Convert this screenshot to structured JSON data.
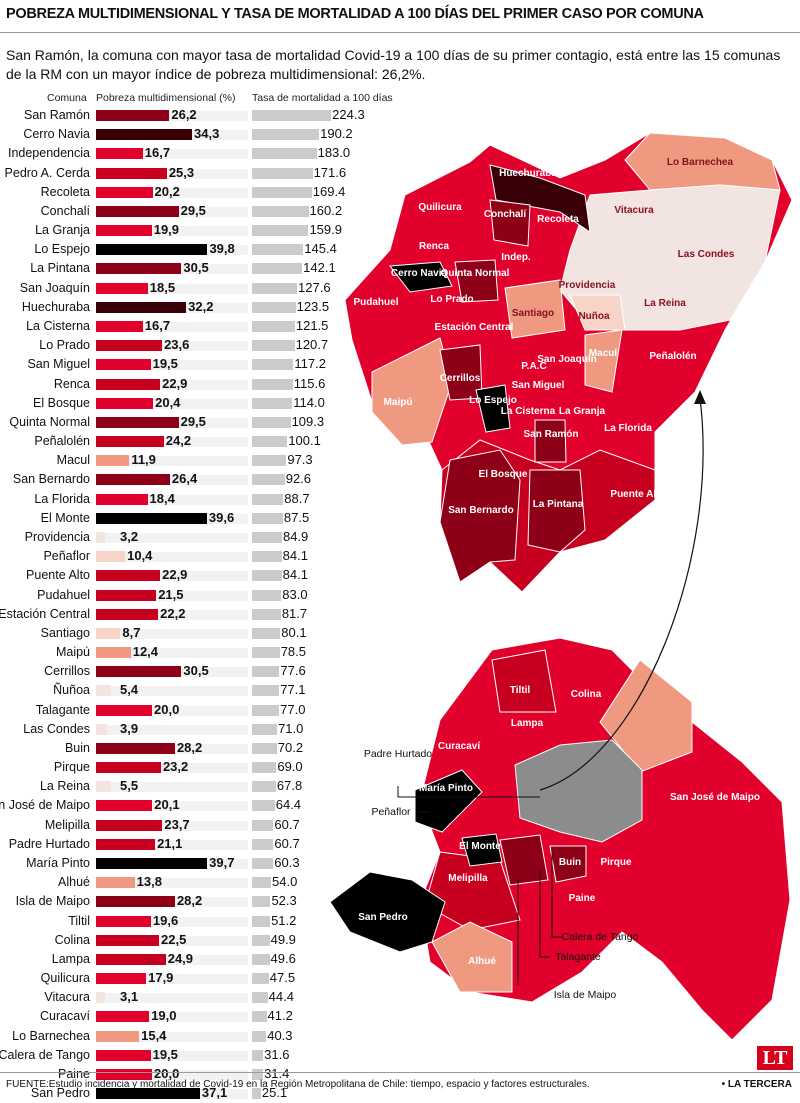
{
  "title": "Pobreza multidimensional y tasa de mortalidad a 100 días del primer caso por comuna",
  "subtitle": "San Ramón, la comuna con mayor tasa de mortalidad Covid-19 a 100 días de su primer contagio, está entre las 15 comunas de la RM con un mayor índice de pobreza multidimensional: 26,2%.",
  "colors": {
    "black": "#000000",
    "maroon": "#3a0008",
    "dark_red": "#8e0018",
    "red": "#c8001f",
    "bright_red": "#e2002c",
    "salmon": "#ef9a80",
    "light_pink": "#f8d3c8",
    "pale": "#f2e4e0",
    "mortality_bar": "#cbcbcb",
    "urban_gray": "#8c8c8c"
  },
  "chart_data": {
    "type": "bar",
    "headers": {
      "comuna": "Comuna",
      "pobreza": "Pobreza multidimensional (%)",
      "mortalidad": "Tasa de mortalidad a 100 días"
    },
    "rows": [
      {
        "comuna": "San Ramón",
        "pobreza": "26,2",
        "mortalidad": "224.3"
      },
      {
        "comuna": "Cerro Navia",
        "pobreza": "34,3",
        "mortalidad": "190.2"
      },
      {
        "comuna": "Independencia",
        "pobreza": "16,7",
        "mortalidad": "183.0"
      },
      {
        "comuna": "Pedro A. Cerda",
        "pobreza": "25,3",
        "mortalidad": "171.6"
      },
      {
        "comuna": "Recoleta",
        "pobreza": "20,2",
        "mortalidad": "169.4"
      },
      {
        "comuna": "Conchalí",
        "pobreza": "29,5",
        "mortalidad": "160.2"
      },
      {
        "comuna": "La Granja",
        "pobreza": "19,9",
        "mortalidad": "159.9"
      },
      {
        "comuna": "Lo Espejo",
        "pobreza": "39,8",
        "mortalidad": "145.4"
      },
      {
        "comuna": "La Pintana",
        "pobreza": "30,5",
        "mortalidad": "142.1"
      },
      {
        "comuna": "San Joaquín",
        "pobreza": "18,5",
        "mortalidad": "127.6"
      },
      {
        "comuna": "Huechuraba",
        "pobreza": "32,2",
        "mortalidad": "123.5"
      },
      {
        "comuna": "La Cisterna",
        "pobreza": "16,7",
        "mortalidad": "121.5"
      },
      {
        "comuna": "Lo Prado",
        "pobreza": "23,6",
        "mortalidad": "120.7"
      },
      {
        "comuna": "San Miguel",
        "pobreza": "19,5",
        "mortalidad": "117.2"
      },
      {
        "comuna": "Renca",
        "pobreza": "22,9",
        "mortalidad": "115.6"
      },
      {
        "comuna": "El Bosque",
        "pobreza": "20,4",
        "mortalidad": "114.0"
      },
      {
        "comuna": "Quinta Normal",
        "pobreza": "29,5",
        "mortalidad": "109.3"
      },
      {
        "comuna": "Peñalolén",
        "pobreza": "24,2",
        "mortalidad": "100.1"
      },
      {
        "comuna": "Macul",
        "pobreza": "11,9",
        "mortalidad": "97.3"
      },
      {
        "comuna": "San Bernardo",
        "pobreza": "26,4",
        "mortalidad": "92.6"
      },
      {
        "comuna": "La Florida",
        "pobreza": "18,4",
        "mortalidad": "88.7"
      },
      {
        "comuna": "El Monte",
        "pobreza": "39,6",
        "mortalidad": "87.5"
      },
      {
        "comuna": "Providencia",
        "pobreza": "3,2",
        "mortalidad": "84.9"
      },
      {
        "comuna": "Peñaflor",
        "pobreza": "10,4",
        "mortalidad": "84.1"
      },
      {
        "comuna": "Puente Alto",
        "pobreza": "22,9",
        "mortalidad": "84.1"
      },
      {
        "comuna": "Pudahuel",
        "pobreza": "21,5",
        "mortalidad": "83.0"
      },
      {
        "comuna": "Estación Central",
        "pobreza": "22,2",
        "mortalidad": "81.7"
      },
      {
        "comuna": "Santiago",
        "pobreza": "8,7",
        "mortalidad": "80.1"
      },
      {
        "comuna": "Maipú",
        "pobreza": "12,4",
        "mortalidad": "78.5"
      },
      {
        "comuna": "Cerrillos",
        "pobreza": "30,5",
        "mortalidad": "77.6"
      },
      {
        "comuna": "Ñuñoa",
        "pobreza": "5,4",
        "mortalidad": "77.1"
      },
      {
        "comuna": "Talagante",
        "pobreza": "20,0",
        "mortalidad": "77.0"
      },
      {
        "comuna": "Las Condes",
        "pobreza": "3,9",
        "mortalidad": "71.0"
      },
      {
        "comuna": "Buin",
        "pobreza": "28,2",
        "mortalidad": "70.2"
      },
      {
        "comuna": "Pirque",
        "pobreza": "23,2",
        "mortalidad": "69.0"
      },
      {
        "comuna": "La Reina",
        "pobreza": "5,5",
        "mortalidad": "67.8"
      },
      {
        "comuna": "San José de Maipo",
        "pobreza": "20,1",
        "mortalidad": "64.4"
      },
      {
        "comuna": "Melipilla",
        "pobreza": "23,7",
        "mortalidad": "60.7"
      },
      {
        "comuna": "Padre Hurtado",
        "pobreza": "21,1",
        "mortalidad": "60.7"
      },
      {
        "comuna": "María Pinto",
        "pobreza": "39,7",
        "mortalidad": "60.3"
      },
      {
        "comuna": "Alhué",
        "pobreza": "13,8",
        "mortalidad": "54.0"
      },
      {
        "comuna": "Isla de Maipo",
        "pobreza": "28,2",
        "mortalidad": "52.3"
      },
      {
        "comuna": "Tiltil",
        "pobreza": "19,6",
        "mortalidad": "51.2"
      },
      {
        "comuna": "Colina",
        "pobreza": "22,5",
        "mortalidad": "49.9"
      },
      {
        "comuna": "Lampa",
        "pobreza": "24,9",
        "mortalidad": "49.6"
      },
      {
        "comuna": "Quilicura",
        "pobreza": "17,9",
        "mortalidad": "47.5"
      },
      {
        "comuna": "Vitacura",
        "pobreza": "3,1",
        "mortalidad": "44.4"
      },
      {
        "comuna": "Curacaví",
        "pobreza": "19,0",
        "mortalidad": "41.2"
      },
      {
        "comuna": "Lo Barnechea",
        "pobreza": "15,4",
        "mortalidad": "40.3"
      },
      {
        "comuna": "Calera de Tango",
        "pobreza": "19,5",
        "mortalidad": "31.6"
      },
      {
        "comuna": "Paine",
        "pobreza": "20,0",
        "mortalidad": "31.4"
      },
      {
        "comuna": "San Pedro",
        "pobreza": "37,1",
        "mortalidad": "25.1"
      }
    ]
  },
  "map": {
    "urban_labels": [
      "Huechuraba",
      "Lo Barnechea",
      "Quilicura",
      "Conchalí",
      "Vitacura",
      "Recoleta",
      "Renca",
      "Indep.",
      "Las Condes",
      "Cerro Navia",
      "Quinta Normal",
      "Providencia",
      "Pudahuel",
      "Lo Prado",
      "Santiago",
      "La Reina",
      "Nuñoa",
      "Estación Central",
      "Macul",
      "Peñalolén",
      "Cerrillos",
      "P.A.C",
      "San Joaquín",
      "San Miguel",
      "Maipú",
      "Lo Espejo",
      "La Cisterna",
      "La Granja",
      "La Florida",
      "San Ramón",
      "El Bosque",
      "Puente Alto",
      "La Pintana",
      "San Bernardo"
    ],
    "region_labels": [
      "Tiltil",
      "Colina",
      "Lampa",
      "Curacaví",
      "María Pinto",
      "San José de Maipo",
      "El Monte",
      "Buin",
      "Pirque",
      "Melipilla",
      "Paine",
      "San Pedro",
      "Alhué"
    ],
    "callout_labels": [
      "Padre Hurtado",
      "Peñaflor",
      "Calera de Tango",
      "Talagante",
      "Isla de Maipo"
    ]
  },
  "footer": {
    "source": "FUENTE:Estudio incidencia y mortalidad de Covid-19 en la Región Metropolitana de Chile: tiempo, espacio y factores estructurales.",
    "brand": "• LA TERCERA",
    "logo": "LT"
  }
}
